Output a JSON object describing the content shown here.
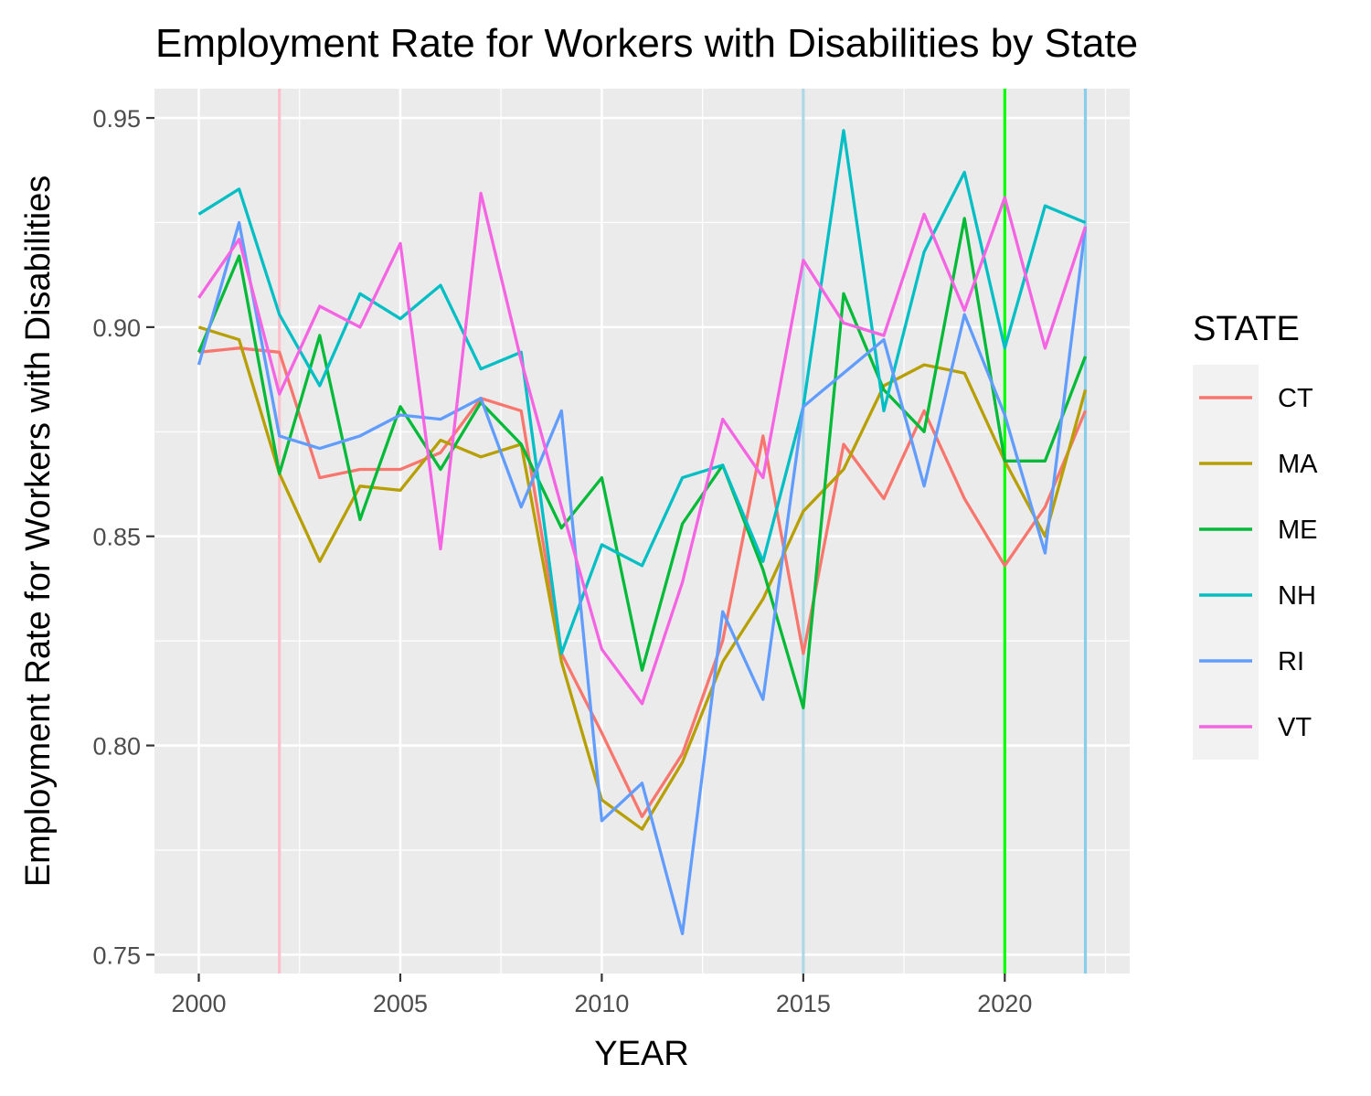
{
  "chart_data": {
    "type": "line",
    "title": "Employment Rate for Workers with Disabilities by State",
    "xlabel": "YEAR",
    "ylabel": "Employment Rate for Workers with Disabilities",
    "xlim": [
      1998.9,
      2023.1
    ],
    "ylim": [
      0.7455,
      0.957
    ],
    "x_ticks": [
      2000,
      2005,
      2010,
      2015,
      2020
    ],
    "y_ticks": [
      0.75,
      0.8,
      0.85,
      0.9,
      0.95
    ],
    "y_tick_labels": [
      "0.75",
      "0.80",
      "0.85",
      "0.90",
      "0.95"
    ],
    "grid": true,
    "legend": {
      "title": "STATE",
      "position": "right"
    },
    "x": [
      2000,
      2001,
      2002,
      2003,
      2004,
      2005,
      2006,
      2007,
      2008,
      2009,
      2010,
      2011,
      2012,
      2013,
      2014,
      2015,
      2016,
      2017,
      2018,
      2019,
      2020,
      2021,
      2022
    ],
    "vlines": [
      {
        "x": 2002,
        "color": "#ffc0cb"
      },
      {
        "x": 2015,
        "color": "#add8e6"
      },
      {
        "x": 2020,
        "color": "#00ff00"
      },
      {
        "x": 2022,
        "color": "#87ceeb"
      }
    ],
    "series": [
      {
        "name": "CT",
        "color": "#f8766d",
        "values": [
          0.894,
          0.895,
          0.894,
          0.864,
          0.866,
          0.866,
          0.87,
          0.883,
          0.88,
          0.822,
          0.803,
          0.783,
          0.798,
          0.825,
          0.874,
          0.822,
          0.872,
          0.859,
          0.88,
          0.859,
          0.843,
          0.857,
          0.88
        ]
      },
      {
        "name": "MA",
        "color": "#b79f00",
        "values": [
          0.9,
          0.897,
          0.865,
          0.844,
          0.862,
          0.861,
          0.873,
          0.869,
          0.872,
          0.82,
          0.787,
          0.78,
          0.796,
          0.82,
          0.835,
          0.856,
          0.866,
          0.886,
          0.891,
          0.889,
          0.868,
          0.85,
          0.885
        ]
      },
      {
        "name": "ME",
        "color": "#00ba38",
        "values": [
          0.894,
          0.917,
          0.865,
          0.898,
          0.854,
          0.881,
          0.866,
          0.882,
          0.872,
          0.852,
          0.864,
          0.818,
          0.853,
          0.867,
          0.842,
          0.809,
          0.908,
          0.885,
          0.875,
          0.926,
          0.868,
          0.868,
          0.893
        ]
      },
      {
        "name": "NH",
        "color": "#00bfc4",
        "values": [
          0.927,
          0.933,
          0.903,
          0.886,
          0.908,
          0.902,
          0.91,
          0.89,
          0.894,
          0.822,
          0.848,
          0.843,
          0.864,
          0.867,
          0.844,
          0.881,
          0.947,
          0.88,
          0.918,
          0.937,
          0.895,
          0.929,
          0.925
        ]
      },
      {
        "name": "RI",
        "color": "#619cff",
        "values": [
          0.891,
          0.925,
          0.874,
          0.871,
          0.874,
          0.879,
          0.878,
          0.883,
          0.857,
          0.88,
          0.782,
          0.791,
          0.755,
          0.832,
          0.811,
          0.881,
          0.889,
          0.897,
          0.862,
          0.903,
          0.879,
          0.846,
          0.924
        ]
      },
      {
        "name": "VT",
        "color": "#f564e3",
        "values": [
          0.907,
          0.921,
          0.884,
          0.905,
          0.9,
          0.92,
          0.847,
          0.932,
          0.892,
          0.857,
          0.823,
          0.81,
          0.839,
          0.878,
          0.864,
          0.916,
          0.901,
          0.898,
          0.927,
          0.904,
          0.931,
          0.895,
          0.924
        ]
      }
    ]
  }
}
